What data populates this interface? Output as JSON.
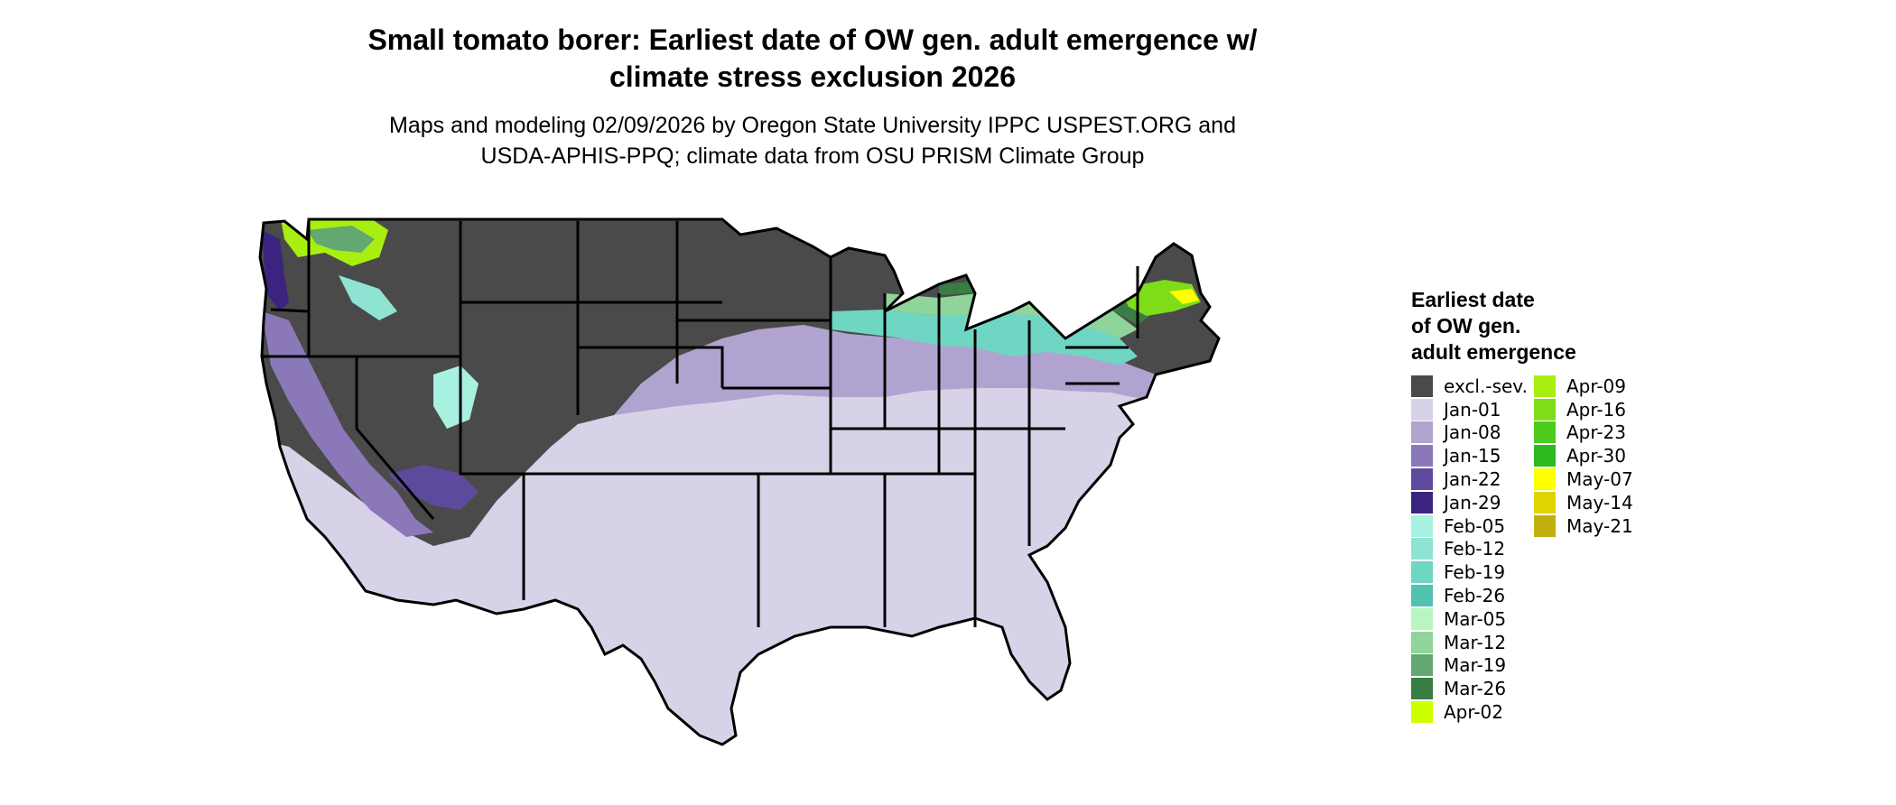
{
  "header": {
    "title_line1": "Small tomato borer: Earliest date of OW gen. adult emergence w/",
    "title_line2": "climate stress exclusion 2026",
    "subtitle_line1": "Maps and modeling 02/09/2026 by Oregon State University IPPC USPEST.ORG and",
    "subtitle_line2": "USDA-APHIS-PPQ; climate data from OSU PRISM Climate Group"
  },
  "legend": {
    "title_line1": "Earliest date",
    "title_line2": "of OW gen.",
    "title_line3": "adult emergence",
    "items": [
      {
        "label": "excl.-sev.",
        "color": "#4a4a4a"
      },
      {
        "label": "Jan-01",
        "color": "#d8d2e8"
      },
      {
        "label": "Jan-08",
        "color": "#b0a3d0"
      },
      {
        "label": "Jan-15",
        "color": "#8a78b8"
      },
      {
        "label": "Jan-22",
        "color": "#5e4a9c"
      },
      {
        "label": "Jan-29",
        "color": "#3a2480"
      },
      {
        "label": "Feb-05",
        "color": "#a8f0e0"
      },
      {
        "label": "Feb-12",
        "color": "#8ee3d2"
      },
      {
        "label": "Feb-19",
        "color": "#6fd6c3"
      },
      {
        "label": "Feb-26",
        "color": "#4fc2b2"
      },
      {
        "label": "Mar-05",
        "color": "#b8f5c0"
      },
      {
        "label": "Mar-12",
        "color": "#8fd49a"
      },
      {
        "label": "Mar-19",
        "color": "#62a870"
      },
      {
        "label": "Mar-26",
        "color": "#3a7d44"
      },
      {
        "label": "Apr-02",
        "color": "#ccff00"
      },
      {
        "label": "Apr-09",
        "color": "#a8ee10"
      },
      {
        "label": "Apr-16",
        "color": "#7edd18"
      },
      {
        "label": "Apr-23",
        "color": "#4ccc1c"
      },
      {
        "label": "Apr-30",
        "color": "#2bbb1e"
      },
      {
        "label": "May-07",
        "color": "#ffff00"
      },
      {
        "label": "May-14",
        "color": "#e0d400"
      },
      {
        "label": "May-21",
        "color": "#c2b010"
      }
    ]
  },
  "map": {
    "region": "Contiguous United States",
    "boundary_color": "#000000"
  }
}
